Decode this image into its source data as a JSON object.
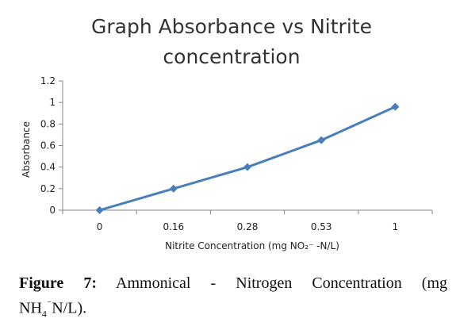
{
  "chart_data": {
    "type": "line",
    "title": "Graph Absorbance vs Nitrite concentration",
    "title_lines": [
      "Graph Absorbance vs Nitrite",
      "concentration"
    ],
    "xlabel": "Nitrite Concentration (mg NO₂⁻ -N/L)",
    "ylabel": "Absorbance",
    "categories": [
      "0",
      "0.16",
      "0.28",
      "0.53",
      "1"
    ],
    "series": [
      {
        "values": [
          0,
          0.2,
          0.4,
          0.65,
          0.96
        ],
        "color": "#4a7ebb"
      }
    ],
    "ylim": [
      0,
      1.2
    ],
    "yticks": [
      "0",
      "0.2",
      "0.4",
      "0.6",
      "0.8",
      "1",
      "1.2"
    ],
    "grid": false,
    "marker": "diamond"
  },
  "caption": {
    "label": "Figure 7:",
    "line1": "Ammonical - Nitrogen Concentration (mg",
    "line2_pre": "NH",
    "line2_sub": "4",
    "line2_sup": "⁻",
    "line2_post": "N/L)."
  }
}
